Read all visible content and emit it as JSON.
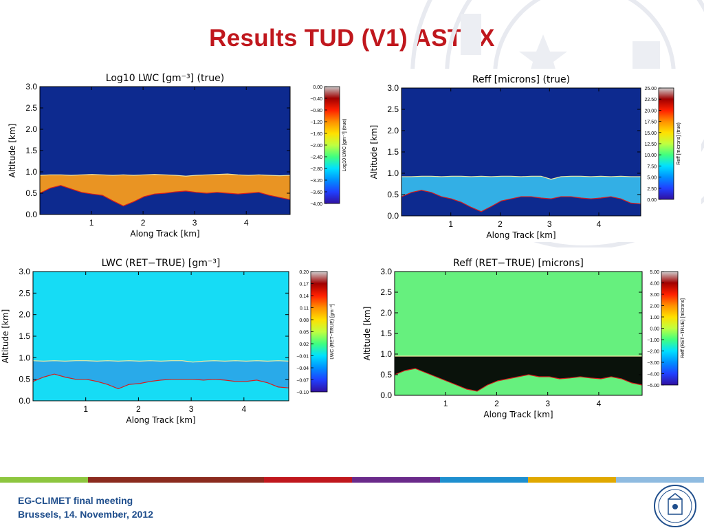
{
  "slide": {
    "title": "Results TUD (V1) ASTEX",
    "footer_line1": "EG-CLIMET final meeting",
    "footer_line2": "Brussels, 14. November, 2012",
    "footer_colors": [
      "#8dc63f",
      "#8b2b1e",
      "#8b2b1e",
      "#c0171d",
      "#6a2a8a",
      "#1e8fcf",
      "#e0a800",
      "#8fbbe0"
    ]
  },
  "chart_data": [
    {
      "type": "heatmap",
      "title": "Log10 LWC [gm⁻³] (true)",
      "xlabel": "Along Track [km]",
      "ylabel": "Altitude [km]",
      "xticks": [
        "1",
        "2",
        "3",
        "4"
      ],
      "xtick_values": [
        1,
        2,
        3,
        4
      ],
      "yticks": [
        "0.0",
        "0.5",
        "1.0",
        "1.5",
        "2.0",
        "2.5",
        "3.0"
      ],
      "ytick_values": [
        0,
        0.5,
        1,
        1.5,
        2,
        2.5,
        3
      ],
      "xlim": [
        0,
        4.85
      ],
      "ylim": [
        0,
        3
      ],
      "background_color": "#0d2a8f",
      "cloud_base_km": [
        0.5,
        0.62,
        0.68,
        0.6,
        0.52,
        0.48,
        0.45,
        0.32,
        0.2,
        0.3,
        0.42,
        0.48,
        0.5,
        0.53,
        0.55,
        0.52,
        0.5,
        0.52,
        0.5,
        0.48,
        0.5,
        0.52,
        0.45,
        0.4,
        0.35
      ],
      "cloud_top_km": [
        0.92,
        0.93,
        0.93,
        0.92,
        0.93,
        0.94,
        0.93,
        0.92,
        0.93,
        0.92,
        0.93,
        0.94,
        0.93,
        0.92,
        0.9,
        0.92,
        0.93,
        0.94,
        0.95,
        0.93,
        0.92,
        0.93,
        0.92,
        0.91,
        0.92
      ],
      "cloud_color": "#f59a1e",
      "colorbar": {
        "label": "Log10 LWC [gm⁻³] (true)",
        "ticks": [
          "0.00",
          "−0.40",
          "−0.80",
          "−1.20",
          "−1.60",
          "−2.00",
          "−2.40",
          "−2.80",
          "−3.20",
          "−3.60",
          "−4.00"
        ],
        "range": [
          -4,
          0
        ]
      }
    },
    {
      "type": "heatmap",
      "title": "Reff [microns] (true)",
      "xlabel": "Along Track [km]",
      "ylabel": "Altitude [km]",
      "xticks": [
        "1",
        "2",
        "3",
        "4"
      ],
      "xtick_values": [
        1,
        2,
        3,
        4
      ],
      "yticks": [
        "0.0",
        "0.5",
        "1.0",
        "1.5",
        "2.0",
        "2.5",
        "3.0"
      ],
      "ytick_values": [
        0,
        0.5,
        1,
        1.5,
        2,
        2.5,
        3
      ],
      "xlim": [
        0,
        4.85
      ],
      "ylim": [
        0,
        3
      ],
      "background_color": "#0d2a8f",
      "cloud_base_km": [
        0.45,
        0.55,
        0.6,
        0.55,
        0.45,
        0.4,
        0.32,
        0.2,
        0.1,
        0.22,
        0.35,
        0.4,
        0.45,
        0.45,
        0.42,
        0.4,
        0.45,
        0.45,
        0.42,
        0.4,
        0.42,
        0.45,
        0.4,
        0.3,
        0.28
      ],
      "cloud_top_km": [
        0.92,
        0.92,
        0.93,
        0.93,
        0.92,
        0.93,
        0.93,
        0.92,
        0.93,
        0.92,
        0.93,
        0.93,
        0.92,
        0.93,
        0.93,
        0.86,
        0.92,
        0.93,
        0.93,
        0.92,
        0.93,
        0.92,
        0.93,
        0.92,
        0.92
      ],
      "cloud_color": "#36b6ea",
      "colorbar": {
        "label": "Reff [microns] (true)",
        "ticks": [
          "25.00",
          "22.50",
          "20.00",
          "17.50",
          "15.00",
          "12.50",
          "10.00",
          "7.50",
          "5.00",
          "2.50",
          "0.00"
        ],
        "range": [
          0,
          25
        ]
      }
    },
    {
      "type": "heatmap",
      "title": "LWC (RET−TRUE) [gm⁻³]",
      "xlabel": "Along Track [km]",
      "ylabel": "Altitude [km]",
      "xticks": [
        "1",
        "2",
        "3",
        "4"
      ],
      "xtick_values": [
        1,
        2,
        3,
        4
      ],
      "yticks": [
        "0.0",
        "0.5",
        "1.0",
        "1.5",
        "2.0",
        "2.5",
        "3.0"
      ],
      "ytick_values": [
        0,
        0.5,
        1,
        1.5,
        2,
        2.5,
        3
      ],
      "xlim": [
        0,
        4.85
      ],
      "ylim": [
        0,
        3
      ],
      "background_color": "#16dcf5",
      "cloud_base_km": [
        0.45,
        0.55,
        0.62,
        0.55,
        0.5,
        0.5,
        0.45,
        0.38,
        0.28,
        0.38,
        0.4,
        0.45,
        0.48,
        0.5,
        0.5,
        0.5,
        0.48,
        0.5,
        0.48,
        0.45,
        0.45,
        0.48,
        0.42,
        0.32,
        0.3
      ],
      "cloud_top_km": [
        0.93,
        0.92,
        0.93,
        0.92,
        0.93,
        0.93,
        0.92,
        0.93,
        0.92,
        0.93,
        0.92,
        0.93,
        0.92,
        0.93,
        0.93,
        0.9,
        0.92,
        0.93,
        0.92,
        0.93,
        0.92,
        0.93,
        0.92,
        0.93,
        0.92
      ],
      "cloud_color": "#2aa6e8",
      "colorbar": {
        "label": "LWC (RET−TRUE) [gm⁻³]",
        "ticks": [
          "0.20",
          "0.17",
          "0.14",
          "0.11",
          "0.08",
          "0.05",
          "0.02",
          "−0.01",
          "−0.04",
          "−0.07",
          "−0.10"
        ],
        "range": [
          -0.1,
          0.2
        ]
      }
    },
    {
      "type": "heatmap",
      "title": "Reff (RET−TRUE) [microns]",
      "xlabel": "Along Track [km]",
      "ylabel": "Altitude [km]",
      "xticks": [
        "1",
        "2",
        "3",
        "4"
      ],
      "xtick_values": [
        1,
        2,
        3,
        4
      ],
      "yticks": [
        "0.0",
        "0.5",
        "1.0",
        "1.5",
        "2.0",
        "2.5",
        "3.0"
      ],
      "ytick_values": [
        0,
        0.5,
        1,
        1.5,
        2,
        2.5,
        3
      ],
      "xlim": [
        0,
        4.85
      ],
      "ylim": [
        0,
        3
      ],
      "background_color": "#66f07e",
      "cloud_base_km": [
        0.5,
        0.6,
        0.65,
        0.55,
        0.45,
        0.35,
        0.25,
        0.15,
        0.1,
        0.25,
        0.35,
        0.4,
        0.45,
        0.5,
        0.45,
        0.45,
        0.4,
        0.42,
        0.45,
        0.42,
        0.4,
        0.45,
        0.4,
        0.3,
        0.25
      ],
      "cloud_top_km": [
        0.95,
        0.95,
        0.95,
        0.95,
        0.95,
        0.95,
        0.95,
        0.95,
        0.95,
        0.95,
        0.95,
        0.95,
        0.95,
        0.95,
        0.95,
        0.95,
        0.95,
        0.95,
        0.95,
        0.95,
        0.95,
        0.95,
        0.95,
        0.95,
        0.95
      ],
      "cloud_color": "#050505",
      "colorbar": {
        "label": "Reff (RET−TRUE) [microns]",
        "ticks": [
          "5.00",
          "4.00",
          "3.00",
          "2.00",
          "1.00",
          "0.00",
          "−1.00",
          "−2.00",
          "−3.00",
          "−4.00",
          "−5.00"
        ],
        "range": [
          -5,
          5
        ]
      }
    }
  ]
}
